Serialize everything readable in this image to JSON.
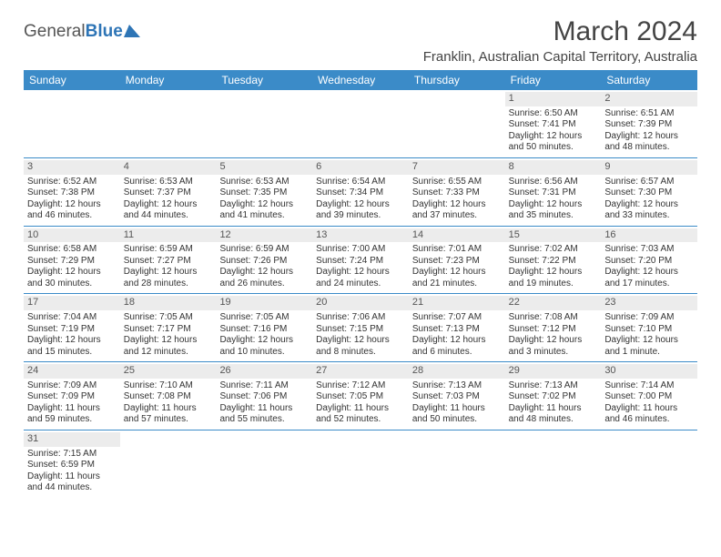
{
  "logo": {
    "part1": "General",
    "part2": "Blue"
  },
  "title": "March 2024",
  "location": "Franklin, Australian Capital Territory, Australia",
  "colors": {
    "header_bg": "#3b8bc8",
    "header_text": "#ffffff",
    "daynum_bg": "#ececec",
    "row_border": "#3b8bc8",
    "body_text": "#333333",
    "logo_blue": "#2e75b6"
  },
  "weekdays": [
    "Sunday",
    "Monday",
    "Tuesday",
    "Wednesday",
    "Thursday",
    "Friday",
    "Saturday"
  ],
  "weeks": [
    [
      null,
      null,
      null,
      null,
      null,
      {
        "n": "1",
        "sunrise": "6:50 AM",
        "sunset": "7:41 PM",
        "dl1": "Daylight: 12 hours",
        "dl2": "and 50 minutes."
      },
      {
        "n": "2",
        "sunrise": "6:51 AM",
        "sunset": "7:39 PM",
        "dl1": "Daylight: 12 hours",
        "dl2": "and 48 minutes."
      }
    ],
    [
      {
        "n": "3",
        "sunrise": "6:52 AM",
        "sunset": "7:38 PM",
        "dl1": "Daylight: 12 hours",
        "dl2": "and 46 minutes."
      },
      {
        "n": "4",
        "sunrise": "6:53 AM",
        "sunset": "7:37 PM",
        "dl1": "Daylight: 12 hours",
        "dl2": "and 44 minutes."
      },
      {
        "n": "5",
        "sunrise": "6:53 AM",
        "sunset": "7:35 PM",
        "dl1": "Daylight: 12 hours",
        "dl2": "and 41 minutes."
      },
      {
        "n": "6",
        "sunrise": "6:54 AM",
        "sunset": "7:34 PM",
        "dl1": "Daylight: 12 hours",
        "dl2": "and 39 minutes."
      },
      {
        "n": "7",
        "sunrise": "6:55 AM",
        "sunset": "7:33 PM",
        "dl1": "Daylight: 12 hours",
        "dl2": "and 37 minutes."
      },
      {
        "n": "8",
        "sunrise": "6:56 AM",
        "sunset": "7:31 PM",
        "dl1": "Daylight: 12 hours",
        "dl2": "and 35 minutes."
      },
      {
        "n": "9",
        "sunrise": "6:57 AM",
        "sunset": "7:30 PM",
        "dl1": "Daylight: 12 hours",
        "dl2": "and 33 minutes."
      }
    ],
    [
      {
        "n": "10",
        "sunrise": "6:58 AM",
        "sunset": "7:29 PM",
        "dl1": "Daylight: 12 hours",
        "dl2": "and 30 minutes."
      },
      {
        "n": "11",
        "sunrise": "6:59 AM",
        "sunset": "7:27 PM",
        "dl1": "Daylight: 12 hours",
        "dl2": "and 28 minutes."
      },
      {
        "n": "12",
        "sunrise": "6:59 AM",
        "sunset": "7:26 PM",
        "dl1": "Daylight: 12 hours",
        "dl2": "and 26 minutes."
      },
      {
        "n": "13",
        "sunrise": "7:00 AM",
        "sunset": "7:24 PM",
        "dl1": "Daylight: 12 hours",
        "dl2": "and 24 minutes."
      },
      {
        "n": "14",
        "sunrise": "7:01 AM",
        "sunset": "7:23 PM",
        "dl1": "Daylight: 12 hours",
        "dl2": "and 21 minutes."
      },
      {
        "n": "15",
        "sunrise": "7:02 AM",
        "sunset": "7:22 PM",
        "dl1": "Daylight: 12 hours",
        "dl2": "and 19 minutes."
      },
      {
        "n": "16",
        "sunrise": "7:03 AM",
        "sunset": "7:20 PM",
        "dl1": "Daylight: 12 hours",
        "dl2": "and 17 minutes."
      }
    ],
    [
      {
        "n": "17",
        "sunrise": "7:04 AM",
        "sunset": "7:19 PM",
        "dl1": "Daylight: 12 hours",
        "dl2": "and 15 minutes."
      },
      {
        "n": "18",
        "sunrise": "7:05 AM",
        "sunset": "7:17 PM",
        "dl1": "Daylight: 12 hours",
        "dl2": "and 12 minutes."
      },
      {
        "n": "19",
        "sunrise": "7:05 AM",
        "sunset": "7:16 PM",
        "dl1": "Daylight: 12 hours",
        "dl2": "and 10 minutes."
      },
      {
        "n": "20",
        "sunrise": "7:06 AM",
        "sunset": "7:15 PM",
        "dl1": "Daylight: 12 hours",
        "dl2": "and 8 minutes."
      },
      {
        "n": "21",
        "sunrise": "7:07 AM",
        "sunset": "7:13 PM",
        "dl1": "Daylight: 12 hours",
        "dl2": "and 6 minutes."
      },
      {
        "n": "22",
        "sunrise": "7:08 AM",
        "sunset": "7:12 PM",
        "dl1": "Daylight: 12 hours",
        "dl2": "and 3 minutes."
      },
      {
        "n": "23",
        "sunrise": "7:09 AM",
        "sunset": "7:10 PM",
        "dl1": "Daylight: 12 hours",
        "dl2": "and 1 minute."
      }
    ],
    [
      {
        "n": "24",
        "sunrise": "7:09 AM",
        "sunset": "7:09 PM",
        "dl1": "Daylight: 11 hours",
        "dl2": "and 59 minutes."
      },
      {
        "n": "25",
        "sunrise": "7:10 AM",
        "sunset": "7:08 PM",
        "dl1": "Daylight: 11 hours",
        "dl2": "and 57 minutes."
      },
      {
        "n": "26",
        "sunrise": "7:11 AM",
        "sunset": "7:06 PM",
        "dl1": "Daylight: 11 hours",
        "dl2": "and 55 minutes."
      },
      {
        "n": "27",
        "sunrise": "7:12 AM",
        "sunset": "7:05 PM",
        "dl1": "Daylight: 11 hours",
        "dl2": "and 52 minutes."
      },
      {
        "n": "28",
        "sunrise": "7:13 AM",
        "sunset": "7:03 PM",
        "dl1": "Daylight: 11 hours",
        "dl2": "and 50 minutes."
      },
      {
        "n": "29",
        "sunrise": "7:13 AM",
        "sunset": "7:02 PM",
        "dl1": "Daylight: 11 hours",
        "dl2": "and 48 minutes."
      },
      {
        "n": "30",
        "sunrise": "7:14 AM",
        "sunset": "7:00 PM",
        "dl1": "Daylight: 11 hours",
        "dl2": "and 46 minutes."
      }
    ],
    [
      {
        "n": "31",
        "sunrise": "7:15 AM",
        "sunset": "6:59 PM",
        "dl1": "Daylight: 11 hours",
        "dl2": "and 44 minutes."
      },
      null,
      null,
      null,
      null,
      null,
      null
    ]
  ]
}
